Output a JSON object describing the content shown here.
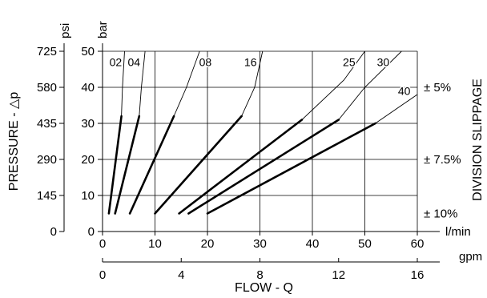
{
  "chart_data": {
    "type": "line",
    "x": {
      "label": "FLOW - Q",
      "unit": "l/min",
      "range": [
        0,
        60
      ],
      "ticks": [
        "0",
        "10",
        "20",
        "30",
        "40",
        "50",
        "60"
      ]
    },
    "x2": {
      "unit": "gpm",
      "range": [
        0,
        16
      ],
      "ticks": [
        "0",
        "4",
        "8",
        "12",
        "16"
      ]
    },
    "y": {
      "label": "PRESSURE - △p",
      "unit": "bar",
      "range": [
        0,
        50
      ],
      "ticks": [
        "0",
        "10",
        "20",
        "30",
        "40",
        "50"
      ]
    },
    "y2": {
      "unit": "psi",
      "ticks": [
        "0",
        "145",
        "290",
        "435",
        "580",
        "725"
      ]
    },
    "right_label": "DIVISION SLIPPAGE",
    "slippage": [
      {
        "label": "± 5%",
        "y_range": [
          30,
          50
        ]
      },
      {
        "label": "± 7.5%",
        "y_range": [
          10,
          30
        ]
      },
      {
        "label": "± 10%",
        "y_range": [
          0,
          10
        ]
      }
    ],
    "grid": true,
    "series": [
      {
        "name": "02",
        "thin": [
          [
            3.6,
            32
          ],
          [
            3.8,
            40
          ],
          [
            4.2,
            50
          ]
        ],
        "bold": [
          [
            1.2,
            5
          ],
          [
            3.6,
            32
          ]
        ]
      },
      {
        "name": "04",
        "thin": [
          [
            7.0,
            32
          ],
          [
            7.4,
            40
          ],
          [
            8.1,
            50
          ]
        ],
        "bold": [
          [
            2.4,
            5
          ],
          [
            7.0,
            32
          ]
        ]
      },
      {
        "name": "08",
        "thin": [
          [
            13.6,
            32
          ],
          [
            16.0,
            40
          ],
          [
            17.5,
            46
          ],
          [
            18.5,
            50
          ]
        ],
        "bold": [
          [
            5.2,
            5
          ],
          [
            13.6,
            32
          ]
        ]
      },
      {
        "name": "16",
        "thin": [
          [
            26.5,
            32
          ],
          [
            29.0,
            40
          ],
          [
            30.5,
            50
          ]
        ],
        "bold": [
          [
            10.0,
            5
          ],
          [
            26.5,
            32
          ]
        ]
      },
      {
        "name": "25",
        "thin": [
          [
            38.0,
            31
          ],
          [
            46.0,
            42
          ],
          [
            50.0,
            50
          ]
        ],
        "bold": [
          [
            14.6,
            5
          ],
          [
            38.0,
            31
          ]
        ]
      },
      {
        "name": "30",
        "thin": [
          [
            45.0,
            31
          ],
          [
            50.0,
            40
          ],
          [
            57.0,
            50
          ]
        ],
        "bold": [
          [
            16.4,
            5
          ],
          [
            45.0,
            31
          ]
        ]
      },
      {
        "name": "40",
        "thin": [
          [
            52.0,
            30
          ],
          [
            57.0,
            35
          ],
          [
            60.0,
            38
          ]
        ],
        "bold": [
          [
            20.0,
            5
          ],
          [
            52.0,
            30
          ]
        ]
      }
    ],
    "series_labels": {
      "02": {
        "x": 2.5,
        "y": 47
      },
      "04": {
        "x": 6.0,
        "y": 47
      },
      "08": {
        "x": 19.6,
        "y": 47
      },
      "16": {
        "x": 28.2,
        "y": 47
      },
      "25": {
        "x": 47.0,
        "y": 47
      },
      "30": {
        "x": 53.5,
        "y": 47
      },
      "40": {
        "x": 57.5,
        "y": 39
      }
    }
  }
}
